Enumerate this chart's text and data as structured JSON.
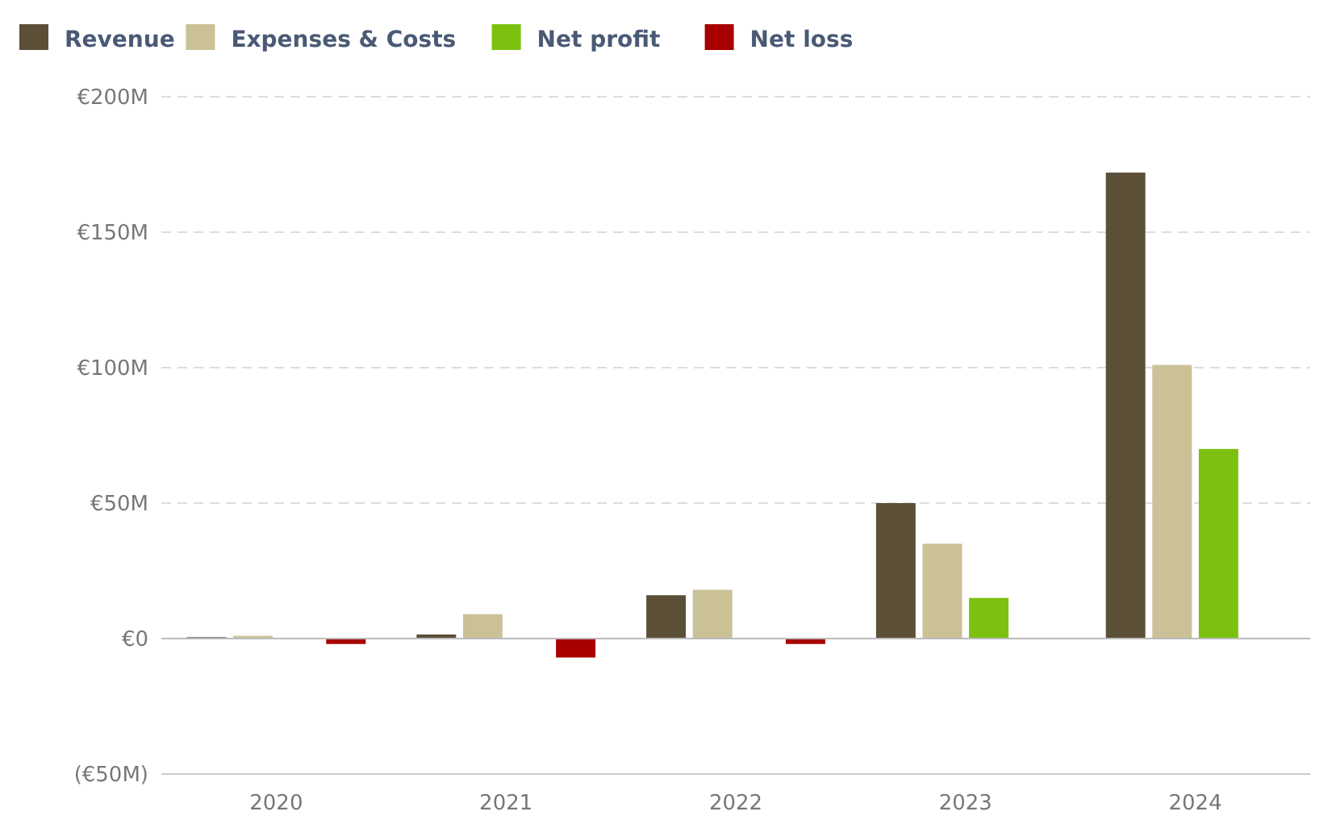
{
  "chart_data": {
    "type": "bar",
    "categories": [
      "2020",
      "2021",
      "2022",
      "2023",
      "2024"
    ],
    "series": [
      {
        "name": "Revenue",
        "color": "#5c4f38",
        "values": [
          0.5,
          1.5,
          16,
          50,
          172
        ]
      },
      {
        "name": "Expenses & Costs",
        "color": "#cbc196",
        "values": [
          1,
          9,
          18,
          35,
          101
        ]
      },
      {
        "name": "Net profit",
        "color": "#7cc110",
        "values": [
          null,
          null,
          null,
          15,
          70
        ]
      },
      {
        "name": "Net loss",
        "color": "#a80000",
        "values": [
          -2,
          -7,
          -2,
          null,
          null
        ]
      }
    ],
    "ylim": [
      -50,
      200
    ],
    "yticks": [
      {
        "value": -50,
        "label": "(€50M)"
      },
      {
        "value": 0,
        "label": "€0"
      },
      {
        "value": 50,
        "label": "€50M"
      },
      {
        "value": 100,
        "label": "€100M"
      },
      {
        "value": 150,
        "label": "€150M"
      },
      {
        "value": 200,
        "label": "€200M"
      }
    ],
    "grid": "y",
    "legend": "top left"
  }
}
